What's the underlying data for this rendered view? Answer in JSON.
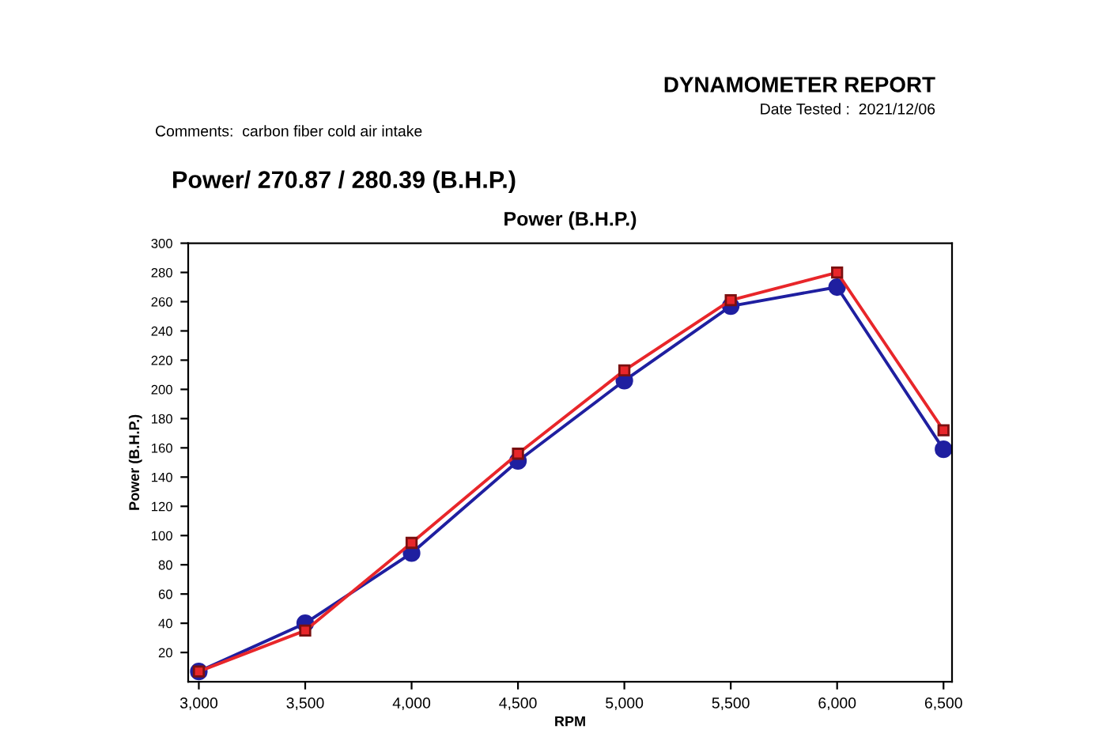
{
  "chart_data": {
    "type": "line",
    "title": "Power/ 270.87 / 280.39 (B.H.P.)",
    "subtitle": "Power (B.H.P.)",
    "xlabel": "RPM",
    "ylabel": "Power (B.H.P.)",
    "annotations": [
      "DYNAMOMETER REPORT",
      "Date Tested :  2021/12/06",
      "Comments:  carbon fiber cold air intake"
    ],
    "x": [
      3000,
      3500,
      4000,
      4500,
      5000,
      5500,
      6000,
      6500
    ],
    "series": [
      {
        "color": "#1f1fa0",
        "marker": "circle",
        "values": [
          7,
          40,
          88,
          151,
          206,
          257,
          270,
          159
        ]
      },
      {
        "color": "#e8262a",
        "marker": "square",
        "values": [
          7,
          35,
          95,
          156,
          213,
          261,
          280,
          172
        ]
      }
    ],
    "xlim": [
      2950,
      6540
    ],
    "ylim": [
      0,
      300
    ],
    "xticks": [
      {
        "value": 3000,
        "label": "3,000"
      },
      {
        "value": 3500,
        "label": "3,500"
      },
      {
        "value": 4000,
        "label": "4,000"
      },
      {
        "value": 4500,
        "label": "4,500"
      },
      {
        "value": 5000,
        "label": "5,000"
      },
      {
        "value": 5500,
        "label": "5,500"
      },
      {
        "value": 6000,
        "label": "6,000"
      },
      {
        "value": 6500,
        "label": "6,500"
      }
    ],
    "yticks": [
      20,
      40,
      60,
      80,
      100,
      120,
      140,
      160,
      180,
      200,
      220,
      240,
      260,
      280,
      300
    ],
    "grid": false,
    "legend": false,
    "line_style": "solid"
  }
}
